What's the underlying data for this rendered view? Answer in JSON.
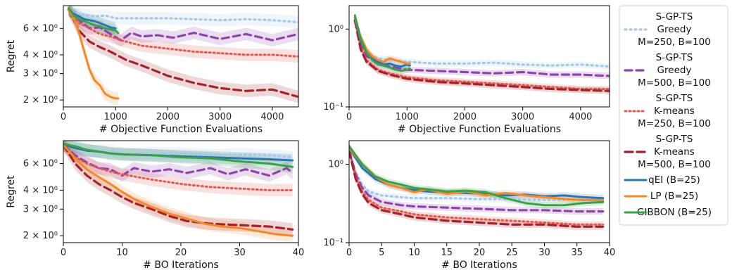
{
  "figure": {
    "legend": {
      "placement": "right",
      "entries": [
        {
          "lines": [
            "S-GP-TS",
            "Greedy",
            "M=250, B=100"
          ],
          "series": "sgp_g250"
        },
        {
          "lines": [
            "S-GP-TS",
            "Greedy",
            "M=500, B=100"
          ],
          "series": "sgp_g500"
        },
        {
          "lines": [
            "S-GP-TS",
            "K-means",
            "M=250, B=100"
          ],
          "series": "sgp_k250"
        },
        {
          "lines": [
            "S-GP-TS",
            "K-means",
            "M=500, B=100"
          ],
          "series": "sgp_k500"
        },
        {
          "lines": [
            "qEI (B=25)"
          ],
          "series": "qei"
        },
        {
          "lines": [
            "LP (B=25)"
          ],
          "series": "lp"
        },
        {
          "lines": [
            "GIBBON (B=25)"
          ],
          "series": "gibbon"
        }
      ]
    },
    "styles": {
      "sgp_g250": {
        "color": "#a6c8e6",
        "dash": "2 5",
        "width": 3.2
      },
      "sgp_g500": {
        "color": "#8e44ad",
        "dash": "10 6",
        "width": 3.2
      },
      "sgp_k250": {
        "color": "#e05a50",
        "dash": "2 4",
        "width": 3.0
      },
      "sgp_k500": {
        "color": "#a3222c",
        "dash": "11 6",
        "width": 3.2
      },
      "qei": {
        "color": "#2e75b0",
        "dash": "",
        "width": 3.0
      },
      "lp": {
        "color": "#f28a2c",
        "dash": "",
        "width": 3.0
      },
      "gibbon": {
        "color": "#3aa147",
        "dash": "",
        "width": 3.0
      }
    }
  },
  "chart_data": [
    {
      "type": "line",
      "xlabel": "# Objective Function Evaluations",
      "ylabel": "Regret",
      "xlim": [
        0,
        4500
      ],
      "ylim": [
        1.8,
        8.5
      ],
      "yscale": "log",
      "xticks": [
        "0",
        "1000",
        "2000",
        "3000",
        "4000"
      ],
      "xtick_values": [
        0,
        1000,
        2000,
        3000,
        4000
      ],
      "yticks": [
        "2 × 10⁰",
        "3 × 10⁰",
        "4 × 10⁰",
        "6 × 10⁰"
      ],
      "ytick_values": [
        2,
        3,
        4,
        6
      ],
      "series": [
        {
          "key": "sgp_g250",
          "x": [
            100,
            200,
            300,
            400,
            600,
            800,
            1000,
            1500,
            2000,
            2500,
            3000,
            3500,
            4000,
            4500
          ],
          "y": [
            8.0,
            7.6,
            7.5,
            7.4,
            7.2,
            7.3,
            7.0,
            7.0,
            7.0,
            6.9,
            6.8,
            6.9,
            6.8,
            6.6
          ]
        },
        {
          "key": "sgp_g500",
          "x": [
            100,
            300,
            500,
            700,
            900,
            1100,
            1300,
            1500,
            1800,
            2100,
            2500,
            3000,
            3500,
            4000,
            4500
          ],
          "y": [
            8.0,
            6.8,
            6.0,
            6.1,
            5.5,
            5.0,
            5.6,
            5.3,
            5.4,
            5.2,
            5.6,
            5.1,
            5.5,
            5.0,
            5.5
          ]
        },
        {
          "key": "sgp_k250",
          "x": [
            100,
            300,
            500,
            700,
            900,
            1100,
            1500,
            2000,
            2500,
            3000,
            3500,
            4000,
            4500
          ],
          "y": [
            8.0,
            6.5,
            6.0,
            5.5,
            5.3,
            5.0,
            4.6,
            4.4,
            4.2,
            4.1,
            4.0,
            4.0,
            3.9
          ]
        },
        {
          "key": "sgp_k500",
          "x": [
            100,
            300,
            500,
            700,
            900,
            1200,
            1500,
            2000,
            2500,
            3000,
            3500,
            4000,
            4500
          ],
          "y": [
            8.0,
            5.8,
            4.9,
            4.5,
            4.2,
            3.7,
            3.4,
            2.9,
            2.6,
            2.4,
            2.3,
            2.35,
            2.1
          ]
        },
        {
          "key": "qei",
          "x": [
            100,
            200,
            300,
            400,
            500,
            600,
            700,
            800,
            900,
            1000
          ],
          "y": [
            8.0,
            7.5,
            7.2,
            6.9,
            6.8,
            6.7,
            6.5,
            6.3,
            6.1,
            6.0
          ]
        },
        {
          "key": "lp",
          "x": [
            100,
            200,
            300,
            400,
            500,
            600,
            700,
            800,
            900,
            1000,
            1050
          ],
          "y": [
            7.9,
            7.0,
            5.6,
            4.2,
            3.2,
            2.7,
            2.5,
            2.2,
            2.1,
            2.05,
            2.05
          ]
        },
        {
          "key": "gibbon",
          "x": [
            100,
            200,
            300,
            400,
            500,
            600,
            700,
            800,
            900,
            1000,
            1050
          ],
          "y": [
            8.2,
            7.3,
            6.9,
            6.7,
            6.5,
            6.3,
            6.2,
            6.0,
            5.9,
            5.8,
            5.6
          ]
        }
      ]
    },
    {
      "type": "line",
      "xlabel": "# Objective Function Evaluations",
      "ylabel": "",
      "xlim": [
        0,
        4500
      ],
      "ylim": [
        0.1,
        2.0
      ],
      "yscale": "log",
      "xticks": [
        "0",
        "1000",
        "2000",
        "3000",
        "4000"
      ],
      "xtick_values": [
        0,
        1000,
        2000,
        3000,
        4000
      ],
      "yticks": [
        "10⁻¹",
        "10⁰"
      ],
      "ytick_values": [
        0.1,
        1.0
      ],
      "series": [
        {
          "key": "sgp_g250",
          "x": [
            100,
            200,
            300,
            500,
            700,
            1000,
            1500,
            2000,
            2500,
            3000,
            3500,
            4000,
            4500
          ],
          "y": [
            1.3,
            0.7,
            0.5,
            0.42,
            0.4,
            0.38,
            0.36,
            0.36,
            0.37,
            0.35,
            0.34,
            0.35,
            0.33
          ]
        },
        {
          "key": "sgp_g500",
          "x": [
            100,
            200,
            300,
            500,
            700,
            1000,
            1500,
            2000,
            2500,
            3000,
            3500,
            4000,
            4500
          ],
          "y": [
            1.3,
            0.65,
            0.45,
            0.36,
            0.33,
            0.3,
            0.29,
            0.28,
            0.27,
            0.28,
            0.26,
            0.26,
            0.25
          ]
        },
        {
          "key": "sgp_k250",
          "x": [
            100,
            200,
            300,
            500,
            700,
            1000,
            1500,
            2000,
            2500,
            3000,
            3500,
            4000,
            4500
          ],
          "y": [
            1.3,
            0.6,
            0.4,
            0.3,
            0.27,
            0.24,
            0.22,
            0.21,
            0.2,
            0.19,
            0.18,
            0.17,
            0.17
          ]
        },
        {
          "key": "sgp_k500",
          "x": [
            100,
            200,
            300,
            500,
            700,
            1000,
            1500,
            2000,
            2500,
            3000,
            3500,
            4000,
            4500
          ],
          "y": [
            1.3,
            0.55,
            0.38,
            0.29,
            0.26,
            0.23,
            0.21,
            0.2,
            0.19,
            0.18,
            0.17,
            0.165,
            0.16
          ]
        },
        {
          "key": "qei",
          "x": [
            100,
            200,
            300,
            400,
            500,
            600,
            700,
            800,
            900,
            1000,
            1050
          ],
          "y": [
            1.4,
            0.7,
            0.5,
            0.42,
            0.38,
            0.35,
            0.36,
            0.34,
            0.33,
            0.35,
            0.34
          ]
        },
        {
          "key": "lp",
          "x": [
            100,
            200,
            300,
            400,
            500,
            600,
            700,
            800,
            900,
            1000,
            1050
          ],
          "y": [
            1.4,
            0.8,
            0.55,
            0.45,
            0.4,
            0.38,
            0.42,
            0.4,
            0.38,
            0.36,
            0.36
          ]
        },
        {
          "key": "gibbon",
          "x": [
            100,
            200,
            300,
            400,
            500,
            600,
            700,
            800,
            900,
            1000,
            1050
          ],
          "y": [
            1.5,
            0.75,
            0.5,
            0.4,
            0.35,
            0.34,
            0.32,
            0.3,
            0.29,
            0.3,
            0.31
          ]
        }
      ]
    },
    {
      "type": "line",
      "xlabel": "# BO Iterations",
      "ylabel": "Regret",
      "xlim": [
        0,
        40
      ],
      "ylim": [
        1.8,
        8.5
      ],
      "yscale": "log",
      "xticks": [
        "0",
        "10",
        "20",
        "30",
        "40"
      ],
      "xtick_values": [
        0,
        10,
        20,
        30,
        40
      ],
      "yticks": [
        "2 × 10⁰",
        "3 × 10⁰",
        "4 × 10⁰",
        "6 × 10⁰"
      ],
      "ytick_values": [
        2,
        3,
        4,
        6
      ],
      "series": [
        {
          "key": "sgp_g250",
          "x": [
            0,
            2,
            4,
            6,
            8,
            10,
            15,
            20,
            25,
            30,
            35,
            39
          ],
          "y": [
            8.0,
            7.5,
            7.3,
            7.2,
            7.3,
            7.0,
            7.0,
            7.0,
            6.8,
            6.9,
            6.8,
            6.6
          ]
        },
        {
          "key": "sgp_g500",
          "x": [
            0,
            2,
            4,
            6,
            8,
            10,
            12,
            15,
            18,
            21,
            25,
            28,
            31,
            35,
            38,
            39
          ],
          "y": [
            8.0,
            6.8,
            6.1,
            5.6,
            5.5,
            5.0,
            5.6,
            5.3,
            5.5,
            5.2,
            5.6,
            5.1,
            5.5,
            5.0,
            5.6,
            5.2
          ]
        },
        {
          "key": "sgp_k250",
          "x": [
            0,
            2,
            4,
            6,
            8,
            10,
            15,
            20,
            25,
            30,
            35,
            39
          ],
          "y": [
            8.0,
            6.6,
            6.0,
            5.6,
            5.3,
            5.1,
            4.7,
            4.4,
            4.2,
            4.1,
            4.0,
            4.0
          ]
        },
        {
          "key": "sgp_k500",
          "x": [
            0,
            2,
            4,
            6,
            8,
            10,
            12,
            15,
            18,
            21,
            25,
            30,
            35,
            39
          ],
          "y": [
            8.0,
            6.0,
            5.0,
            4.4,
            4.0,
            3.6,
            3.3,
            3.0,
            2.7,
            2.5,
            2.4,
            2.35,
            2.3,
            2.2
          ]
        },
        {
          "key": "qei",
          "x": [
            0,
            2,
            4,
            6,
            8,
            10,
            15,
            20,
            25,
            30,
            35,
            39
          ],
          "y": [
            8.0,
            7.6,
            7.3,
            7.2,
            7.0,
            6.9,
            6.8,
            6.7,
            6.6,
            6.5,
            6.4,
            6.3
          ]
        },
        {
          "key": "lp",
          "x": [
            0,
            2,
            4,
            6,
            8,
            10,
            12,
            15,
            18,
            21,
            24,
            27,
            30,
            33,
            36,
            39
          ],
          "y": [
            8.0,
            6.5,
            5.5,
            4.9,
            4.4,
            3.9,
            3.5,
            3.1,
            2.8,
            2.6,
            2.4,
            2.3,
            2.25,
            2.15,
            2.05,
            2.0
          ]
        },
        {
          "key": "gibbon",
          "x": [
            0,
            2,
            4,
            6,
            8,
            10,
            15,
            20,
            25,
            30,
            35,
            39
          ],
          "y": [
            8.1,
            7.8,
            7.4,
            7.2,
            7.0,
            6.9,
            6.8,
            6.6,
            6.5,
            6.2,
            6.0,
            5.7
          ]
        }
      ]
    },
    {
      "type": "line",
      "xlabel": "# BO Iterations",
      "ylabel": "",
      "xlim": [
        0,
        40
      ],
      "ylim": [
        0.1,
        2.0
      ],
      "yscale": "log",
      "xticks": [
        "0",
        "5",
        "10",
        "15",
        "20",
        "25",
        "30",
        "35",
        "40"
      ],
      "xtick_values": [
        0,
        5,
        10,
        15,
        20,
        25,
        30,
        35,
        40
      ],
      "yticks": [
        "10⁻¹",
        "10⁰"
      ],
      "ytick_values": [
        0.1,
        1.0
      ],
      "series": [
        {
          "key": "sgp_g250",
          "x": [
            0,
            1,
            2,
            3,
            5,
            8,
            10,
            15,
            20,
            25,
            30,
            35,
            39
          ],
          "y": [
            1.5,
            0.8,
            0.55,
            0.45,
            0.4,
            0.38,
            0.37,
            0.37,
            0.36,
            0.36,
            0.35,
            0.35,
            0.34
          ]
        },
        {
          "key": "sgp_g500",
          "x": [
            0,
            1,
            2,
            3,
            5,
            8,
            10,
            15,
            20,
            25,
            30,
            35,
            39
          ],
          "y": [
            1.5,
            0.75,
            0.5,
            0.4,
            0.33,
            0.3,
            0.29,
            0.28,
            0.27,
            0.26,
            0.26,
            0.25,
            0.25
          ]
        },
        {
          "key": "sgp_k250",
          "x": [
            0,
            1,
            2,
            3,
            5,
            8,
            10,
            15,
            20,
            25,
            30,
            35,
            39
          ],
          "y": [
            1.5,
            0.7,
            0.45,
            0.35,
            0.28,
            0.25,
            0.23,
            0.21,
            0.2,
            0.19,
            0.18,
            0.17,
            0.17
          ]
        },
        {
          "key": "sgp_k500",
          "x": [
            0,
            1,
            2,
            3,
            5,
            8,
            10,
            15,
            20,
            25,
            30,
            35,
            39
          ],
          "y": [
            1.5,
            0.65,
            0.42,
            0.32,
            0.26,
            0.23,
            0.21,
            0.19,
            0.18,
            0.17,
            0.17,
            0.16,
            0.16
          ]
        },
        {
          "key": "qei",
          "x": [
            0,
            2,
            4,
            6,
            8,
            10,
            12,
            15,
            18,
            21,
            24,
            27,
            30,
            33,
            36,
            39
          ],
          "y": [
            1.6,
            0.9,
            0.65,
            0.55,
            0.5,
            0.47,
            0.45,
            0.44,
            0.43,
            0.42,
            0.4,
            0.41,
            0.39,
            0.4,
            0.38,
            0.37
          ]
        },
        {
          "key": "lp",
          "x": [
            0,
            2,
            4,
            6,
            8,
            10,
            12,
            15,
            18,
            21,
            24,
            27,
            30,
            33,
            36,
            39
          ],
          "y": [
            1.6,
            1.0,
            0.7,
            0.55,
            0.5,
            0.44,
            0.48,
            0.42,
            0.45,
            0.4,
            0.43,
            0.4,
            0.38,
            0.36,
            0.35,
            0.35
          ]
        },
        {
          "key": "gibbon",
          "x": [
            0,
            2,
            4,
            6,
            8,
            10,
            12,
            15,
            18,
            21,
            24,
            27,
            30,
            33,
            36,
            39
          ],
          "y": [
            1.7,
            1.0,
            0.7,
            0.6,
            0.55,
            0.5,
            0.48,
            0.45,
            0.46,
            0.44,
            0.37,
            0.32,
            0.3,
            0.3,
            0.32,
            0.33
          ]
        }
      ]
    }
  ]
}
